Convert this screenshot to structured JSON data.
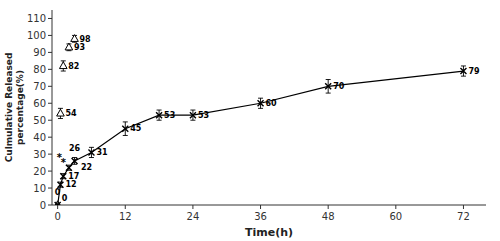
{
  "chart_data": {
    "type": "line",
    "xlabel": "Time(h)",
    "ylabel": "Culmulative Released\npercentage(%)",
    "xlim": [
      -1,
      76
    ],
    "ylim": [
      0,
      115
    ],
    "xticks": [
      0,
      12,
      24,
      36,
      48,
      60,
      72
    ],
    "yticks": [
      0,
      10,
      20,
      30,
      40,
      50,
      60,
      70,
      80,
      90,
      100,
      110
    ],
    "grid": false,
    "data_labels": true,
    "series": [
      {
        "type": "scatter",
        "marker": "triangle",
        "color": "#000000",
        "x": [
          0,
          0.5,
          1,
          2,
          3
        ],
        "values": [
          0,
          54,
          82,
          93,
          98
        ],
        "errors": [
          0,
          3,
          3,
          2,
          2
        ]
      },
      {
        "type": "line",
        "marker": "x",
        "color": "#000000",
        "x": [
          0,
          0.5,
          1,
          2,
          3,
          6,
          12,
          18,
          24,
          36,
          48,
          72
        ],
        "values": [
          0,
          12,
          17,
          22,
          26,
          31,
          45,
          53,
          53,
          60,
          70,
          79
        ],
        "errors": [
          0,
          1.5,
          1.5,
          1.5,
          2,
          3,
          4,
          3,
          3,
          3,
          4,
          3
        ]
      }
    ],
    "annotations": [
      {
        "text": "*",
        "x": 0.3,
        "y": 29
      },
      {
        "text": "*",
        "x": 1.0,
        "y": 26
      }
    ]
  }
}
